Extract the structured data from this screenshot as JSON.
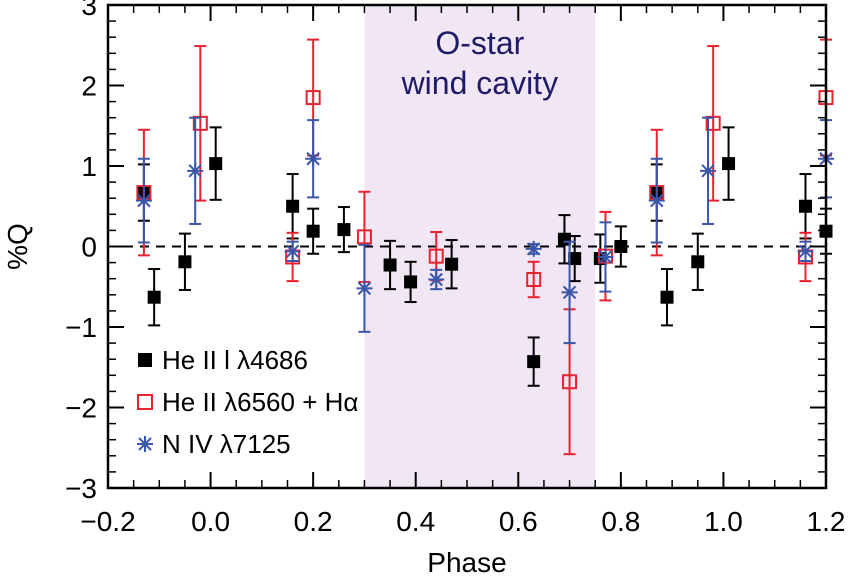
{
  "chart_data": {
    "type": "scatter",
    "title": "",
    "xlabel": "Phase",
    "ylabel": "%Q",
    "xlim": [
      -0.2,
      1.2
    ],
    "ylim": [
      -3,
      3
    ],
    "x_ticks": [
      -0.2,
      0.0,
      0.2,
      0.4,
      0.6,
      0.8,
      1.0,
      1.2
    ],
    "x_tick_labels": [
      "−0.2",
      "0.0",
      "0.2",
      "0.4",
      "0.6",
      "0.8",
      "1.0",
      "1.2"
    ],
    "y_ticks": [
      -3,
      -2,
      -1,
      0,
      1,
      2,
      3
    ],
    "y_tick_labels": [
      "−3",
      "−2",
      "−1",
      "0",
      "1",
      "2",
      "3"
    ],
    "shaded_region": {
      "x_range": [
        0.3,
        0.75
      ],
      "label_line1": "O-star",
      "label_line2": "wind cavity",
      "color": "#f1e6f4"
    },
    "reference_line": {
      "y": 0,
      "style": "dashed"
    },
    "legend_position": "bottom-left",
    "series": [
      {
        "name": "He II l λ4686",
        "marker": "filled-square",
        "color": "#000000",
        "points": [
          {
            "x": -0.13,
            "y": 0.67,
            "err": 0.35
          },
          {
            "x": -0.11,
            "y": -0.63,
            "err": 0.35
          },
          {
            "x": -0.05,
            "y": -0.19,
            "err": 0.35
          },
          {
            "x": 0.01,
            "y": 1.03,
            "err": 0.45
          },
          {
            "x": 0.16,
            "y": 0.5,
            "err": 0.4
          },
          {
            "x": 0.2,
            "y": 0.19,
            "err": 0.28
          },
          {
            "x": 0.26,
            "y": 0.21,
            "err": 0.28
          },
          {
            "x": 0.35,
            "y": -0.23,
            "err": 0.3
          },
          {
            "x": 0.39,
            "y": -0.44,
            "err": 0.25
          },
          {
            "x": 0.47,
            "y": -0.22,
            "err": 0.3
          },
          {
            "x": 0.63,
            "y": -1.43,
            "err": 0.3
          },
          {
            "x": 0.69,
            "y": 0.09,
            "err": 0.3
          },
          {
            "x": 0.71,
            "y": -0.15,
            "err": 0.28
          },
          {
            "x": 0.76,
            "y": -0.15,
            "err": 0.3
          },
          {
            "x": 0.8,
            "y": 0.0,
            "err": 0.25
          },
          {
            "x": 0.87,
            "y": 0.67,
            "err": 0.35
          },
          {
            "x": 0.89,
            "y": -0.63,
            "err": 0.35
          },
          {
            "x": 0.95,
            "y": -0.19,
            "err": 0.35
          },
          {
            "x": 1.01,
            "y": 1.03,
            "err": 0.45
          },
          {
            "x": 1.16,
            "y": 0.5,
            "err": 0.4
          },
          {
            "x": 1.2,
            "y": 0.19,
            "err": 0.28
          }
        ]
      },
      {
        "name": "He II λ6560 + Hα",
        "marker": "open-square",
        "color": "#e8232f",
        "points": [
          {
            "x": -0.13,
            "y": 0.67,
            "err": 0.78
          },
          {
            "x": -0.02,
            "y": 1.53,
            "err": 0.96
          },
          {
            "x": 0.16,
            "y": -0.13,
            "err": 0.3
          },
          {
            "x": 0.2,
            "y": 1.85,
            "err": 0.72
          },
          {
            "x": 0.3,
            "y": 0.12,
            "err": 0.56
          },
          {
            "x": 0.44,
            "y": -0.12,
            "err": 0.3
          },
          {
            "x": 0.63,
            "y": -0.41,
            "err": 0.22
          },
          {
            "x": 0.7,
            "y": -1.68,
            "err": 0.9
          },
          {
            "x": 0.77,
            "y": -0.12,
            "err": 0.55
          },
          {
            "x": 0.87,
            "y": 0.67,
            "err": 0.78
          },
          {
            "x": 0.98,
            "y": 1.53,
            "err": 0.96
          },
          {
            "x": 1.16,
            "y": -0.13,
            "err": 0.3
          },
          {
            "x": 1.2,
            "y": 1.85,
            "err": 0.72
          }
        ]
      },
      {
        "name": "N IV λ7125",
        "marker": "asterisk",
        "color": "#3a56a8",
        "points": [
          {
            "x": -0.13,
            "y": 0.57,
            "err": 0.52
          },
          {
            "x": -0.03,
            "y": 0.94,
            "err": 0.66
          },
          {
            "x": 0.16,
            "y": -0.06,
            "err": 0.12
          },
          {
            "x": 0.2,
            "y": 1.09,
            "err": 0.48
          },
          {
            "x": 0.3,
            "y": -0.52,
            "err": 0.54
          },
          {
            "x": 0.44,
            "y": -0.41,
            "err": 0.12
          },
          {
            "x": 0.63,
            "y": -0.03,
            "err": 0.06
          },
          {
            "x": 0.7,
            "y": -0.57,
            "err": 0.63
          },
          {
            "x": 0.77,
            "y": -0.13,
            "err": 0.43
          },
          {
            "x": 0.87,
            "y": 0.57,
            "err": 0.52
          },
          {
            "x": 0.97,
            "y": 0.94,
            "err": 0.66
          },
          {
            "x": 1.16,
            "y": -0.06,
            "err": 0.12
          },
          {
            "x": 1.2,
            "y": 1.09,
            "err": 0.48
          }
        ]
      }
    ]
  }
}
